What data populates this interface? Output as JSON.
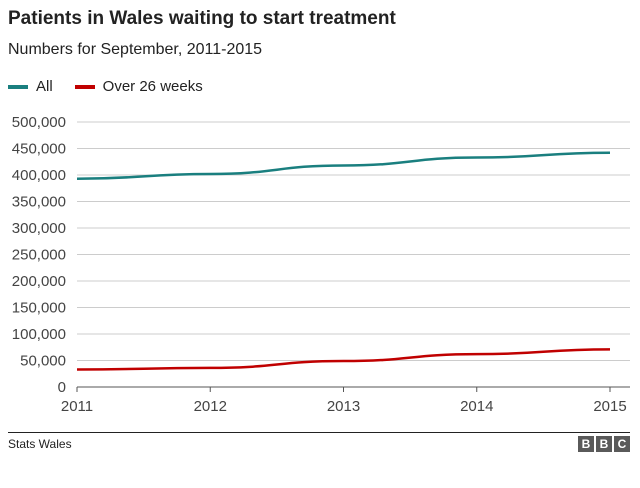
{
  "chart_data": {
    "type": "line",
    "title": "Patients in Wales waiting to start treatment",
    "subtitle": "Numbers for September, 2011-2015",
    "x": [
      2011,
      2012,
      2013,
      2014,
      2015
    ],
    "xlim": [
      2011,
      2015
    ],
    "ylim": [
      0,
      500000
    ],
    "yticks": [
      0,
      50000,
      100000,
      150000,
      200000,
      250000,
      300000,
      350000,
      400000,
      450000,
      500000
    ],
    "ytick_labels": [
      "0",
      "50,000",
      "100,000",
      "150,000",
      "200,000",
      "250,000",
      "300,000",
      "350,000",
      "400,000",
      "450,000",
      "500,000"
    ],
    "xtick_labels": [
      "2011",
      "2012",
      "2013",
      "2014",
      "2015"
    ],
    "grid": true,
    "legend_position": "top-left",
    "series": [
      {
        "name": "All",
        "color": "#1a7f7f",
        "values": [
          393000,
          402000,
          418000,
          433000,
          442000
        ]
      },
      {
        "name": "Over 26 weeks",
        "color": "#c00000",
        "values": [
          33000,
          36000,
          49000,
          62000,
          71000
        ]
      }
    ]
  },
  "source": "Stats Wales",
  "logo": {
    "letters": [
      "B",
      "B",
      "C"
    ]
  }
}
